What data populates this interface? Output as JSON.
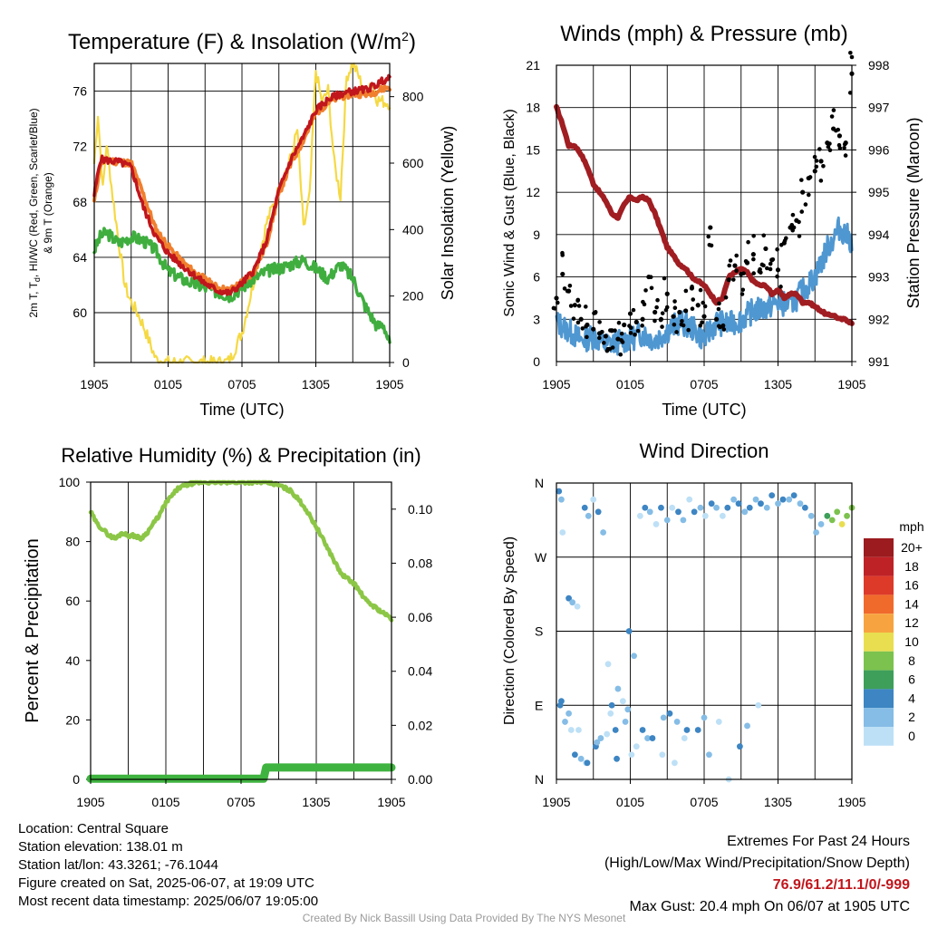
{
  "chart_data": [
    {
      "type": "line",
      "title": "Temperature (F) & Insolation (W/m²)",
      "title_main": "Temperature (F) & Insolation (W/m",
      "title_sup": "2",
      "title_end": ")",
      "xlabel": "Time (UTC)",
      "ylabel": "2m T, Td, HI/WC (Red, Green, Scarlet/Blue) & 9m T (Orange)",
      "ylabel_line1": "2m T, T",
      "ylabel_sub": "d",
      "ylabel_line1_end": ", HI/WC (Red, Green, Scarlet/Blue)",
      "ylabel_line2": "& 9m T (Orange)",
      "ylabel_right": "Solar Insolation (Yellow)",
      "x_ticks": [
        "1905",
        "0105",
        "0705",
        "1305",
        "1905"
      ],
      "xlim": [
        0,
        24
      ],
      "ylim": [
        56.4,
        78
      ],
      "y_ticks": [
        60,
        64,
        68,
        72,
        76
      ],
      "ylim_right": [
        0,
        900
      ],
      "y_ticks_right": [
        0,
        200,
        400,
        600,
        800
      ],
      "colors": {
        "temperature": "#c0161c",
        "heat_index": "#c0161c",
        "temperature_9m": "#f07f2e",
        "dewpoint": "#3fae3f",
        "insolation": "#f5d943"
      },
      "series": [
        {
          "name": "2m T",
          "axis": "left",
          "x": [
            0,
            0.5,
            1,
            2,
            3,
            4,
            5,
            6,
            7,
            8,
            9,
            10,
            11,
            12,
            13,
            14,
            15,
            16,
            17,
            18,
            19,
            20,
            21,
            22,
            23,
            23.5,
            24
          ],
          "y": [
            68.5,
            71.1,
            71.0,
            70.9,
            70.5,
            67.6,
            65.5,
            64.3,
            63.5,
            62.8,
            62.1,
            61.6,
            61.4,
            62.1,
            63.1,
            65.2,
            68.8,
            71.1,
            72.7,
            74.6,
            75.4,
            75.8,
            76.0,
            76.1,
            76.5,
            76.8,
            76.9
          ]
        },
        {
          "name": "9m T",
          "axis": "left",
          "x": [
            0,
            0.5,
            1,
            2,
            3,
            4,
            5,
            6,
            7,
            8,
            9,
            10,
            11,
            12,
            13,
            14,
            15,
            16,
            17,
            18,
            19,
            20,
            21,
            22,
            23,
            23.5,
            24
          ],
          "y": [
            68.0,
            70.8,
            71.0,
            70.9,
            70.8,
            68.5,
            66.0,
            64.8,
            63.8,
            63.0,
            62.4,
            61.8,
            61.6,
            62.2,
            63.0,
            65.0,
            68.6,
            70.8,
            72.5,
            74.4,
            75.2,
            75.6,
            75.8,
            75.8,
            76.0,
            76.2,
            76.3
          ]
        },
        {
          "name": "2m Td",
          "axis": "left",
          "x": [
            0,
            0.5,
            1,
            2,
            3,
            4,
            5,
            6,
            7,
            8,
            9,
            10,
            11,
            12,
            13,
            14,
            15,
            16,
            17,
            18,
            19,
            20,
            21,
            22,
            23,
            23.5,
            24
          ],
          "y": [
            64.5,
            65.5,
            65.8,
            65.0,
            65.5,
            65.2,
            64.5,
            63.0,
            62.5,
            62.1,
            61.8,
            61.5,
            61.2,
            61.8,
            62.5,
            63.0,
            63.2,
            63.5,
            63.8,
            63.2,
            62.5,
            63.5,
            62.5,
            60.5,
            59.0,
            59.2,
            57.7
          ]
        },
        {
          "name": "Solar Insolation",
          "axis": "right",
          "x": [
            0,
            0.3,
            0.7,
            1,
            1.5,
            2,
            2.5,
            3,
            3.5,
            4,
            5,
            6,
            7,
            8,
            9,
            10,
            10.5,
            11,
            12,
            13,
            14,
            15,
            16,
            16.5,
            17,
            17.5,
            18,
            18.5,
            19,
            19.5,
            20,
            20.5,
            21,
            21.5,
            22,
            22.5,
            23,
            24
          ],
          "y": [
            600,
            750,
            520,
            660,
            500,
            360,
            230,
            180,
            150,
            110,
            10,
            0,
            0,
            0,
            0,
            0,
            0,
            5,
            90,
            250,
            420,
            520,
            620,
            700,
            400,
            500,
            880,
            780,
            820,
            600,
            500,
            860,
            900,
            860,
            800,
            850,
            790,
            780
          ]
        }
      ]
    },
    {
      "type": "scatter",
      "title": "Winds (mph) & Pressure (mb)",
      "xlabel": "Time (UTC)",
      "ylabel": "Sonic Wind & Gust (Blue, Black)",
      "ylabel_right": "Station Pressure (Maroon)",
      "x_ticks": [
        "1905",
        "0105",
        "0705",
        "1305",
        "1905"
      ],
      "xlim": [
        0,
        24
      ],
      "ylim": [
        0,
        21
      ],
      "y_ticks": [
        0,
        3,
        6,
        9,
        12,
        15,
        18,
        21
      ],
      "ylim_right": [
        991,
        998
      ],
      "y_ticks_right": [
        991,
        992,
        993,
        994,
        995,
        996,
        997,
        998
      ],
      "colors": {
        "wind": "#4f97d1",
        "gust": "#000000",
        "pressure": "#a01d22"
      },
      "series": [
        {
          "name": "Sonic Wind",
          "axis": "left",
          "x": [
            0,
            1,
            2,
            3,
            4,
            5,
            6,
            7,
            8,
            9,
            10,
            11,
            12,
            13,
            14,
            15,
            16,
            17,
            18,
            19,
            20,
            21,
            22,
            23,
            24
          ],
          "y": [
            2.8,
            2.2,
            1.5,
            1.8,
            1.2,
            1.4,
            1.6,
            2.0,
            1.5,
            2.2,
            2.8,
            2.4,
            1.6,
            2.8,
            2.6,
            3.0,
            3.6,
            3.8,
            4.2,
            4.0,
            5.0,
            6.0,
            8.0,
            9.5,
            8.5
          ]
        },
        {
          "name": "Gust",
          "axis": "left",
          "x": [
            0,
            0.5,
            1,
            1.5,
            2,
            2.5,
            3,
            3.5,
            4,
            4.5,
            5,
            5.5,
            6,
            6.5,
            7,
            7.5,
            8,
            8.5,
            9,
            9.5,
            10,
            10.5,
            11,
            11.5,
            12,
            12.5,
            13,
            13.5,
            14,
            14.5,
            15,
            15.5,
            16,
            16.5,
            17,
            17.5,
            18,
            18.5,
            19,
            19.5,
            20,
            20.5,
            21,
            21.5,
            22,
            22.5,
            23,
            23.5,
            24
          ],
          "y": [
            4.5,
            6.2,
            5.0,
            4.0,
            3.0,
            2.6,
            2.3,
            2.0,
            1.8,
            2.2,
            1.6,
            2.6,
            3.4,
            2.8,
            3.0,
            6.0,
            3.5,
            3.0,
            4.8,
            3.2,
            3.5,
            3.6,
            5.2,
            4.0,
            3.2,
            9.5,
            3.0,
            2.5,
            5.8,
            6.8,
            6.2,
            7.0,
            7.6,
            6.4,
            8.0,
            7.2,
            6.5,
            8.4,
            9.5,
            10.0,
            12.0,
            13.0,
            13.5,
            14.2,
            15.5,
            16.5,
            16.0,
            15.5,
            20.4
          ]
        },
        {
          "name": "Station Pressure",
          "axis": "right",
          "x": [
            0,
            0.5,
            1,
            1.5,
            2,
            2.5,
            3,
            3.5,
            4,
            4.5,
            5,
            5.5,
            6,
            6.5,
            7,
            7.5,
            8,
            8.5,
            9,
            9.5,
            10,
            10.5,
            11,
            11.5,
            12,
            12.5,
            13,
            13.5,
            14,
            14.5,
            15,
            15.5,
            16,
            16.5,
            17,
            17.5,
            18,
            18.5,
            19,
            19.5,
            20,
            20.5,
            21,
            21.5,
            22,
            22.5,
            23,
            23.5,
            24
          ],
          "y": [
            997.0,
            996.6,
            996.1,
            996.1,
            995.9,
            995.6,
            995.2,
            995.0,
            994.8,
            994.5,
            994.4,
            994.7,
            994.9,
            994.8,
            994.9,
            994.8,
            994.5,
            994.1,
            993.7,
            993.5,
            993.3,
            993.2,
            993.0,
            992.9,
            992.8,
            992.6,
            992.4,
            992.5,
            993.0,
            993.1,
            993.2,
            993.1,
            992.9,
            992.8,
            992.8,
            992.6,
            992.7,
            992.5,
            992.6,
            992.6,
            992.4,
            992.4,
            992.3,
            992.2,
            992.1,
            992.1,
            992.0,
            992.0,
            991.9
          ]
        }
      ]
    },
    {
      "type": "line",
      "title": "Relative Humidity (%) & Precipitation (in)",
      "ylabel": "Percent & Precipitation",
      "x_ticks": [
        "1905",
        "0105",
        "0705",
        "1305",
        "1905"
      ],
      "xlim": [
        0,
        24
      ],
      "ylim": [
        0,
        100
      ],
      "y_ticks": [
        0,
        20,
        40,
        60,
        80,
        100
      ],
      "ylim_right": [
        0,
        0.11
      ],
      "y_ticks_right": [
        "0.00",
        "0.02",
        "0.04",
        "0.06",
        "0.08",
        "0.10"
      ],
      "colors": {
        "humidity": "#8cc646",
        "precipitation": "#3fb33f"
      },
      "series": [
        {
          "name": "Relative Humidity",
          "axis": "left",
          "x": [
            0,
            0.5,
            1,
            1.5,
            2,
            2.5,
            3,
            3.5,
            4,
            4.5,
            5,
            5.5,
            6,
            7,
            8,
            9,
            10,
            11,
            12,
            13,
            14,
            15,
            16,
            17,
            18,
            19,
            20,
            21,
            22,
            23,
            24
          ],
          "y": [
            90,
            86,
            84,
            82,
            81,
            83,
            82,
            82,
            81,
            83,
            86,
            89,
            93,
            98,
            99.5,
            100,
            100,
            100,
            100,
            100,
            100,
            99,
            97,
            92,
            85,
            77,
            69,
            66,
            60,
            57,
            54
          ]
        },
        {
          "name": "Precipitation",
          "axis": "left",
          "x": [
            0,
            13.8,
            14.0,
            24
          ],
          "y": [
            0.2,
            0.2,
            4.0,
            4.0
          ]
        }
      ]
    },
    {
      "type": "scatter",
      "title": "Wind Direction",
      "ylabel": "Direction (Colored By Speed)",
      "x_ticks": [
        "1905",
        "0105",
        "0705",
        "1305",
        "1905"
      ],
      "xlim": [
        0,
        24
      ],
      "y_ticks": [
        "N",
        "E",
        "S",
        "W",
        "N"
      ],
      "ylim": [
        0,
        360
      ],
      "legend_title": "mph",
      "legend_labels": [
        "20+",
        "18",
        "16",
        "14",
        "12",
        "10",
        "8",
        "6",
        "4",
        "2",
        "0"
      ],
      "legend_colors": [
        "#9b1b1e",
        "#be2227",
        "#dd3a2a",
        "#f06a2c",
        "#f7a440",
        "#e8de50",
        "#7cc24e",
        "#3d9f5a",
        "#3d85c3",
        "#85bde6",
        "#bde0f6"
      ],
      "series": [
        {
          "name": "Direction",
          "x": [
            0.2,
            0.4,
            0.5,
            1.0,
            1.3,
            1.7,
            2.3,
            2.6,
            3.0,
            3.4,
            3.8,
            4.2,
            4.5,
            5.0,
            5.4,
            5.9,
            6.3,
            6.8,
            7.2,
            7.6,
            8.1,
            8.5,
            9.0,
            9.4,
            9.9,
            10.3,
            10.8,
            11.2,
            11.7,
            12.1,
            12.6,
            13.0,
            13.5,
            13.9,
            14.4,
            14.8,
            15.3,
            15.7,
            16.2,
            16.6,
            17.1,
            17.5,
            18.0,
            18.4,
            18.9,
            19.3,
            19.8,
            20.2,
            20.7,
            21.1,
            21.5,
            22.0,
            22.4,
            22.8,
            23.2,
            23.6,
            24.0,
            0.3,
            0.7,
            1.2,
            1.5,
            2.0,
            2.4,
            3.2,
            3.6,
            4.4,
            4.8,
            5.6,
            6.1,
            7.0,
            7.4,
            8.6,
            9.2,
            9.8,
            10.4,
            11.5,
            12.0,
            14.0,
            0.4,
            1.0,
            1.8,
            2.5,
            3.3,
            4.1,
            4.9,
            5.8,
            6.5,
            7.8,
            8.7,
            9.6,
            10.6,
            12.4,
            13.2,
            14.9,
            15.5,
            16.4
          ],
          "y": [
            350,
            340,
            300,
            220,
            215,
            210,
            330,
            320,
            340,
            325,
            300,
            140,
            90,
            110,
            95,
            180,
            150,
            320,
            330,
            325,
            310,
            330,
            315,
            330,
            325,
            315,
            340,
            325,
            330,
            320,
            335,
            330,
            320,
            330,
            340,
            335,
            325,
            330,
            340,
            335,
            330,
            345,
            335,
            340,
            340,
            345,
            335,
            330,
            320,
            300,
            310,
            320,
            315,
            325,
            310,
            320,
            330,
            90,
            70,
            60,
            30,
            25,
            20,
            40,
            50,
            80,
            60,
            70,
            30,
            60,
            50,
            30,
            80,
            70,
            50,
            60,
            75,
            0,
            95,
            80,
            60,
            20,
            45,
            55,
            25,
            85,
            40,
            50,
            75,
            20,
            60,
            30,
            70,
            40,
            65,
            90
          ]
        }
      ]
    }
  ],
  "info": {
    "location": "Location: Central Square",
    "elevation": "Station elevation: 138.01 m",
    "latlon": "Station lat/lon: 43.3261; -76.1044",
    "created": "Figure created on Sat, 2025-06-07, at 19:09 UTC",
    "recent": "Most recent data timestamp: 2025/06/07 19:05:00"
  },
  "extremes": {
    "title": "Extremes For Past 24 Hours",
    "subtitle": "(High/Low/Max Wind/Precipitation/Snow Depth)",
    "values": "76.9/61.2/11.1/0/-999",
    "values_color": "#c0161c",
    "gust": "Max Gust: 20.4 mph On 06/07 at 1905 UTC"
  },
  "credit": "Created By Nick Bassill Using Data Provided By The NYS Mesonet"
}
